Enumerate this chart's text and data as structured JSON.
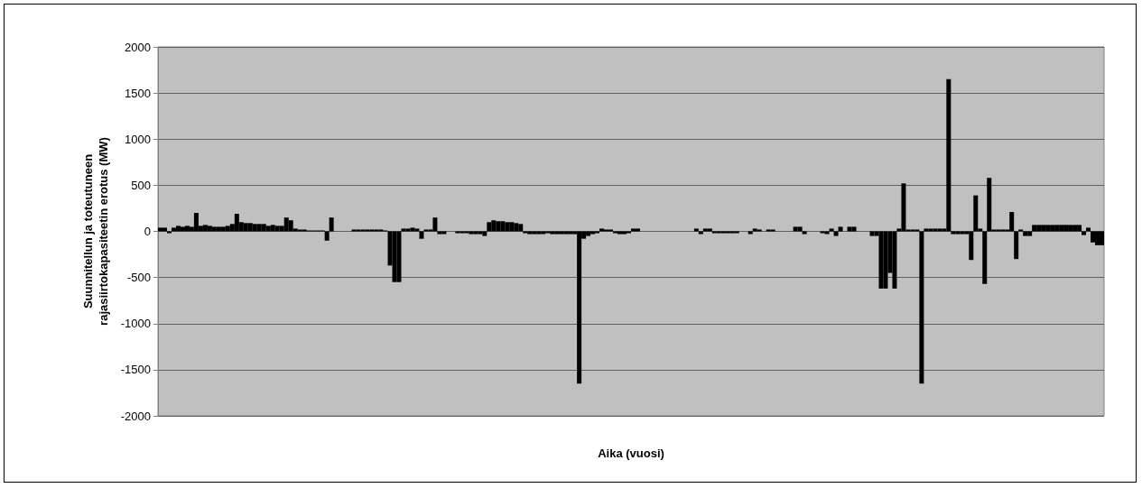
{
  "chart_data": {
    "type": "bar",
    "xlabel": "Aika (vuosi)",
    "ylabel": "Suunnitellun ja toteutuneen\nrajasiirtokapasiteetin erotus (MW)",
    "categories": [
      null,
      null,
      null,
      null,
      null,
      null,
      null,
      null,
      null,
      null,
      null,
      null,
      null,
      null,
      null,
      null,
      null,
      null,
      null,
      null,
      null,
      null,
      null,
      null,
      null,
      null,
      null,
      null,
      null,
      null,
      null,
      null,
      null,
      null,
      null,
      null,
      null,
      null,
      null,
      null,
      null,
      null,
      null,
      null,
      null,
      null,
      null,
      null,
      null,
      null,
      null,
      null,
      null,
      null,
      null,
      null,
      null,
      null,
      null,
      null,
      null,
      null,
      null,
      null,
      null,
      null,
      null,
      null,
      null,
      null,
      null,
      null,
      null,
      null,
      null,
      null,
      null,
      null,
      null,
      null,
      null,
      null,
      null,
      null,
      null,
      null,
      null,
      null,
      null,
      null,
      null,
      null,
      null,
      null,
      null,
      null,
      null,
      null,
      null,
      null,
      null,
      null,
      null,
      null,
      null,
      null,
      null,
      null,
      null,
      null,
      null,
      null,
      null,
      null,
      null,
      null,
      null,
      null,
      null,
      null,
      null,
      null,
      null,
      null,
      null,
      null,
      null,
      null,
      null,
      null,
      null,
      null,
      null,
      null,
      null,
      null,
      null,
      null,
      null,
      null,
      null,
      null,
      null,
      null,
      null,
      null,
      null,
      null,
      null,
      null,
      null,
      null,
      null,
      null,
      null,
      null,
      null,
      null,
      null,
      null,
      null,
      null,
      null,
      null,
      null,
      null,
      null,
      null,
      null,
      null,
      null,
      null,
      null,
      null,
      null,
      null,
      null,
      null,
      null,
      null,
      null,
      null,
      null,
      null,
      null,
      null,
      null,
      null,
      null,
      null,
      null,
      null,
      null,
      null,
      null,
      null,
      null,
      null,
      null,
      null,
      null,
      null,
      null,
      null,
      null,
      null,
      null,
      null,
      null,
      null
    ],
    "values": [
      40,
      40,
      -20,
      40,
      60,
      50,
      60,
      50,
      200,
      60,
      70,
      60,
      50,
      50,
      50,
      60,
      80,
      190,
      100,
      90,
      90,
      80,
      80,
      80,
      60,
      70,
      60,
      60,
      150,
      120,
      30,
      20,
      20,
      10,
      10,
      10,
      10,
      -100,
      150,
      null,
      null,
      null,
      null,
      20,
      20,
      20,
      20,
      20,
      20,
      20,
      10,
      -370,
      -550,
      -550,
      30,
      30,
      40,
      30,
      -80,
      20,
      20,
      150,
      -30,
      -30,
      null,
      null,
      -20,
      -20,
      -20,
      -30,
      -30,
      -30,
      -50,
      100,
      120,
      110,
      110,
      100,
      100,
      90,
      80,
      -20,
      -30,
      -30,
      -30,
      -30,
      -20,
      -30,
      -30,
      -30,
      -30,
      -30,
      -30,
      -1650,
      -80,
      -50,
      -30,
      -20,
      30,
      20,
      20,
      -20,
      -30,
      -30,
      -20,
      30,
      30,
      null,
      null,
      null,
      null,
      null,
      null,
      null,
      null,
      null,
      null,
      null,
      null,
      30,
      -30,
      30,
      30,
      -20,
      -20,
      -20,
      -20,
      -20,
      -20,
      null,
      null,
      -30,
      30,
      20,
      null,
      20,
      20,
      null,
      null,
      null,
      null,
      50,
      50,
      -30,
      null,
      null,
      null,
      -20,
      -30,
      30,
      -50,
      50,
      null,
      50,
      50,
      null,
      null,
      null,
      -50,
      -50,
      -620,
      -620,
      -450,
      -620,
      30,
      520,
      20,
      20,
      20,
      -1650,
      30,
      30,
      30,
      30,
      30,
      1650,
      -30,
      -30,
      -30,
      -30,
      -310,
      390,
      30,
      -570,
      580,
      20,
      20,
      20,
      20,
      210,
      -300,
      20,
      -50,
      -50,
      70,
      70,
      70,
      70,
      70,
      70,
      70,
      70,
      70,
      70,
      70,
      -40,
      40,
      -120,
      -150,
      -150
    ],
    "color": "#000000",
    "ylim": [
      -2000,
      2000
    ],
    "yticks": [
      -2000,
      -1500,
      -1000,
      -500,
      0,
      500,
      1000,
      1500,
      2000
    ],
    "grid": "y",
    "tick_labels": "y"
  }
}
